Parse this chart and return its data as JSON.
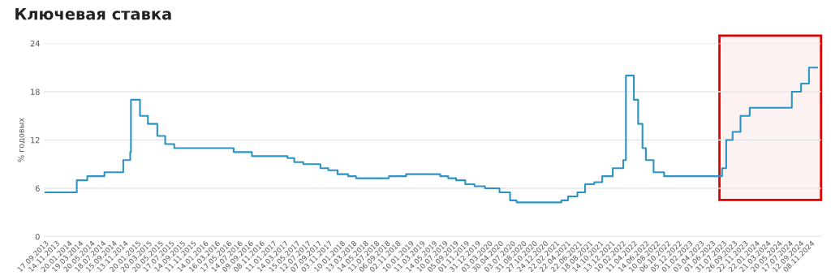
{
  "chart_data": {
    "type": "step",
    "title": "Ключевая ставка",
    "ylabel": "% годовых",
    "x": [
      "2013-09-17",
      "2014-03-03",
      "2014-04-28",
      "2014-07-28",
      "2014-11-05",
      "2014-12-12",
      "2014-12-16",
      "2015-02-02",
      "2015-03-16",
      "2015-05-05",
      "2015-06-16",
      "2015-08-03",
      "2016-06-14",
      "2016-09-19",
      "2017-03-27",
      "2017-05-02",
      "2017-06-19",
      "2017-09-18",
      "2017-10-30",
      "2017-12-18",
      "2018-02-12",
      "2018-03-26",
      "2018-09-17",
      "2018-12-17",
      "2019-06-17",
      "2019-07-29",
      "2019-09-09",
      "2019-10-28",
      "2019-12-16",
      "2020-02-10",
      "2020-04-27",
      "2020-06-22",
      "2020-07-27",
      "2021-03-22",
      "2021-04-26",
      "2021-06-15",
      "2021-07-26",
      "2021-09-13",
      "2021-10-25",
      "2021-12-20",
      "2022-02-14",
      "2022-02-28",
      "2022-04-11",
      "2022-05-04",
      "2022-05-27",
      "2022-06-14",
      "2022-07-25",
      "2022-09-19",
      "2023-07-24",
      "2023-08-15",
      "2023-09-18",
      "2023-10-30",
      "2023-12-18",
      "2024-07-29",
      "2024-09-16",
      "2024-10-28",
      "2024-12-10"
    ],
    "series": [
      {
        "color": "#2b93c4",
        "values": [
          5.5,
          7.0,
          7.5,
          8.0,
          9.5,
          10.5,
          17.0,
          15.0,
          14.0,
          12.5,
          11.5,
          11.0,
          10.5,
          10.0,
          9.75,
          9.25,
          9.0,
          8.5,
          8.25,
          7.75,
          7.5,
          7.25,
          7.5,
          7.75,
          7.5,
          7.25,
          7.0,
          6.5,
          6.25,
          6.0,
          5.5,
          4.5,
          4.25,
          4.5,
          5.0,
          5.5,
          6.5,
          6.75,
          7.5,
          8.5,
          9.5,
          20.0,
          17.0,
          14.0,
          11.0,
          9.5,
          8.0,
          7.5,
          8.5,
          12.0,
          13.0,
          15.0,
          16.0,
          18.0,
          19.0,
          21.0,
          21.0
        ]
      }
    ],
    "ylim": [
      0,
      24
    ],
    "yticks": [
      0,
      6,
      12,
      18,
      24
    ],
    "grid": "y",
    "xlim": [
      "2013-09-10",
      "2024-12-31"
    ],
    "bands": [
      {
        "axis": "x",
        "from": "2023-07-10",
        "to": "2024-12-31",
        "color": "#e00000"
      }
    ],
    "xticks": [
      {
        "value": "2013-09-17",
        "label": "17.09.2013"
      },
      {
        "value": "2013-11-14",
        "label": "14.11.2013"
      },
      {
        "value": "2014-01-20",
        "label": "20.01.2014"
      },
      {
        "value": "2014-03-19",
        "label": "19.03.2014"
      },
      {
        "value": "2014-05-20",
        "label": "20.05.2014"
      },
      {
        "value": "2014-07-18",
        "label": "18.07.2014"
      },
      {
        "value": "2014-09-15",
        "label": "15.09.2014"
      },
      {
        "value": "2014-11-13",
        "label": "13.11.2014"
      },
      {
        "value": "2015-01-20",
        "label": "20.01.2015"
      },
      {
        "value": "2015-03-20",
        "label": "20.03.2015"
      },
      {
        "value": "2015-05-20",
        "label": "20.05.2015"
      },
      {
        "value": "2015-07-17",
        "label": "17.07.2015"
      },
      {
        "value": "2015-09-14",
        "label": "14.09.2015"
      },
      {
        "value": "2015-11-11",
        "label": "11.11.2015"
      },
      {
        "value": "2016-01-14",
        "label": "14.01.2016"
      },
      {
        "value": "2016-03-16",
        "label": "16.03.2016"
      },
      {
        "value": "2016-05-17",
        "label": "17.05.2016"
      },
      {
        "value": "2016-07-14",
        "label": "14.07.2016"
      },
      {
        "value": "2016-09-09",
        "label": "09.09.2016"
      },
      {
        "value": "2016-11-08",
        "label": "08.11.2016"
      },
      {
        "value": "2017-01-11",
        "label": "11.01.2017"
      },
      {
        "value": "2017-03-14",
        "label": "14.03.2017"
      },
      {
        "value": "2017-05-15",
        "label": "15.05.2017"
      },
      {
        "value": "2017-07-12",
        "label": "12.07.2017"
      },
      {
        "value": "2017-09-07",
        "label": "07.09.2017"
      },
      {
        "value": "2017-11-03",
        "label": "03.11.2017"
      },
      {
        "value": "2018-01-10",
        "label": "10.01.2018"
      },
      {
        "value": "2018-03-13",
        "label": "13.03.2018"
      },
      {
        "value": "2018-05-14",
        "label": "14.05.2018"
      },
      {
        "value": "2018-07-11",
        "label": "11.07.2018"
      },
      {
        "value": "2018-09-06",
        "label": "06.09.2018"
      },
      {
        "value": "2018-11-02",
        "label": "02.11.2018"
      },
      {
        "value": "2019-01-10",
        "label": "10.01.2019"
      },
      {
        "value": "2019-03-11",
        "label": "11.03.2019"
      },
      {
        "value": "2019-05-14",
        "label": "14.05.2019"
      },
      {
        "value": "2019-07-10",
        "label": "10.07.2019"
      },
      {
        "value": "2019-09-05",
        "label": "05.09.2019"
      },
      {
        "value": "2019-11-01",
        "label": "01.11.2019"
      },
      {
        "value": "2019-12-31",
        "label": "31.12.2019"
      },
      {
        "value": "2020-03-03",
        "label": "03.03.2020"
      },
      {
        "value": "2020-04-30",
        "label": "30.04.2020"
      },
      {
        "value": "2020-07-03",
        "label": "03.07.2020"
      },
      {
        "value": "2020-08-31",
        "label": "31.08.2020"
      },
      {
        "value": "2020-10-27",
        "label": "27.10.2020"
      },
      {
        "value": "2020-12-24",
        "label": "24.12.2020"
      },
      {
        "value": "2021-02-22",
        "label": "22.02.2021"
      },
      {
        "value": "2021-04-22",
        "label": "22.04.2021"
      },
      {
        "value": "2021-06-22",
        "label": "22.06.2021"
      },
      {
        "value": "2021-08-18",
        "label": "18.08.2021"
      },
      {
        "value": "2021-10-14",
        "label": "14.10.2021"
      },
      {
        "value": "2021-12-13",
        "label": "13.12.2021"
      },
      {
        "value": "2022-02-10",
        "label": "10.02.2022"
      },
      {
        "value": "2022-04-11",
        "label": "11.04.2022"
      },
      {
        "value": "2022-06-14",
        "label": "14.06.2022"
      },
      {
        "value": "2022-08-10",
        "label": "10.08.2022"
      },
      {
        "value": "2022-10-06",
        "label": "06.10.2022"
      },
      {
        "value": "2022-12-05",
        "label": "05.12.2022"
      },
      {
        "value": "2023-02-01",
        "label": "01.02.2023"
      },
      {
        "value": "2023-04-03",
        "label": "03.04.2023"
      },
      {
        "value": "2023-06-01",
        "label": "01.06.2023"
      },
      {
        "value": "2023-07-31",
        "label": "31.07.2023"
      },
      {
        "value": "2023-09-26",
        "label": "26.09.2023"
      },
      {
        "value": "2023-11-22",
        "label": "22.11.2023"
      },
      {
        "value": "2024-01-22",
        "label": "22.01.2024"
      },
      {
        "value": "2024-03-21",
        "label": "21.03.2024"
      },
      {
        "value": "2024-05-20",
        "label": "20.05.2024"
      },
      {
        "value": "2024-07-17",
        "label": "17.07.2024"
      },
      {
        "value": "2024-09-12",
        "label": "12.09.2024"
      },
      {
        "value": "2024-11-08",
        "label": "08.11.2024"
      }
    ]
  }
}
